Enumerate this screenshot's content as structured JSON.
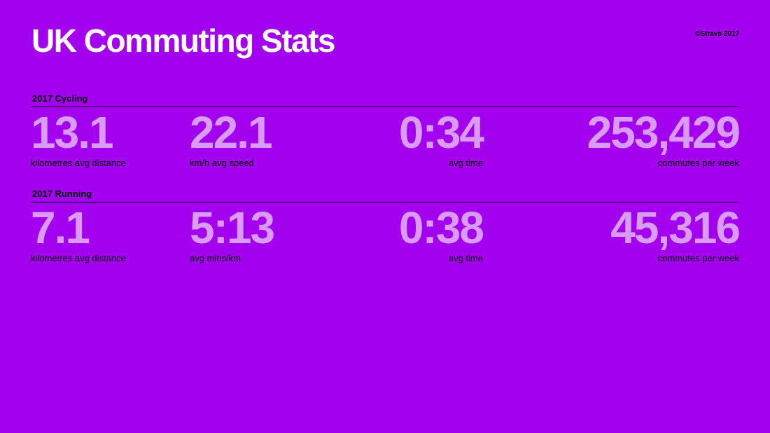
{
  "title": "UK Commuting Stats",
  "credit": "©Strava 2017",
  "colors": {
    "background": "#a300f0",
    "number": "#d89cf6",
    "title": "#ffffff"
  },
  "sections": [
    {
      "heading": "2017 Cycling",
      "stats": [
        {
          "value": "13.1",
          "label": "kilometres avg distance"
        },
        {
          "value": "22.1",
          "label": "km/h avg speed"
        },
        {
          "value": "0:34",
          "label": "avg time"
        },
        {
          "value": "253,429",
          "label": "commutes per week"
        }
      ]
    },
    {
      "heading": "2017 Running",
      "stats": [
        {
          "value": "7.1",
          "label": "kilometres avg distance"
        },
        {
          "value": "5:13",
          "label": "avg mins/km"
        },
        {
          "value": "0:38",
          "label": "avg time"
        },
        {
          "value": "45,316",
          "label": "commutes per week"
        }
      ]
    }
  ]
}
